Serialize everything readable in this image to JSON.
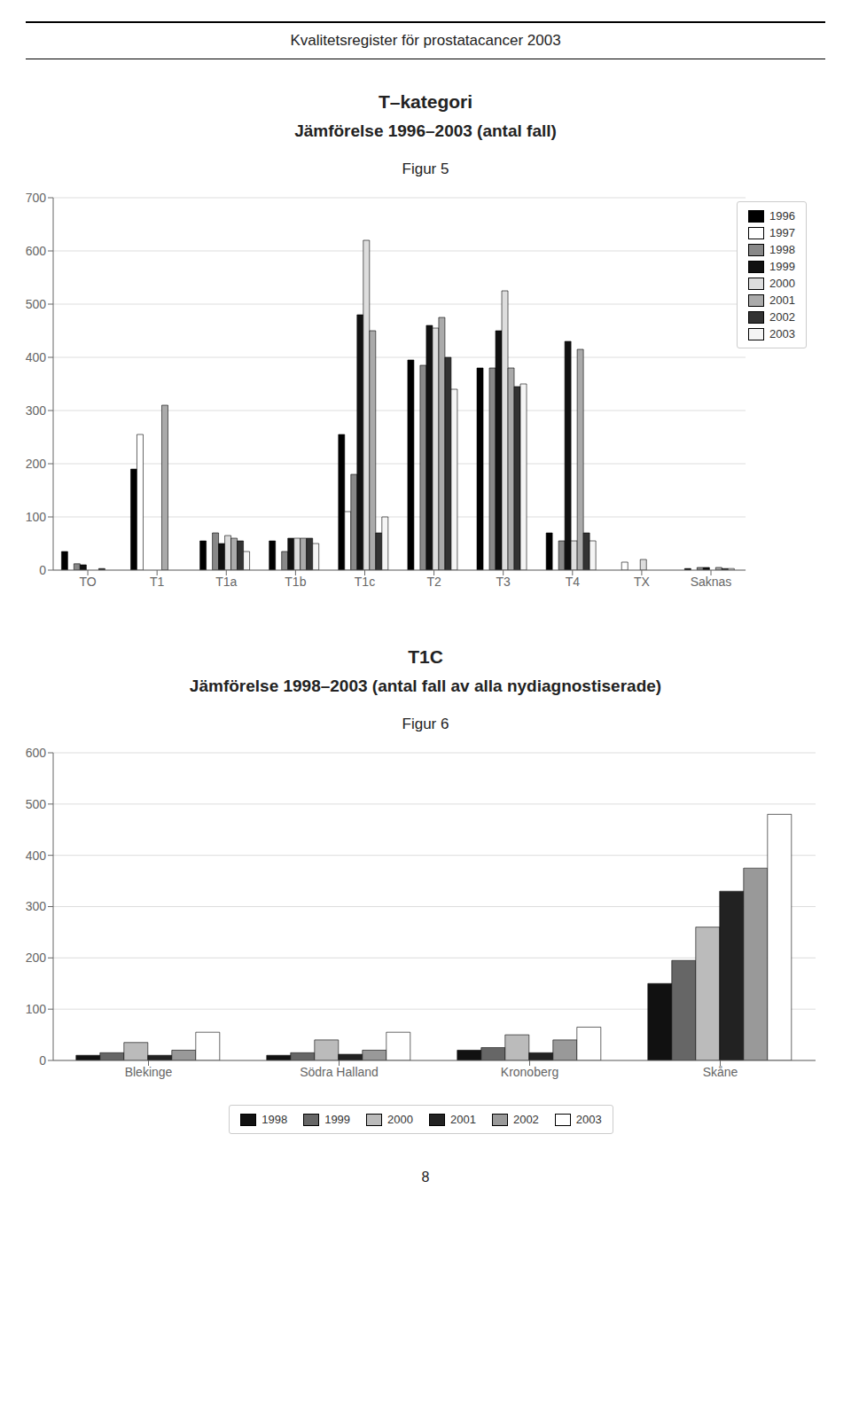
{
  "title": "Kvalitetsregister för prostatacancer 2003",
  "annotations": [
    "8"
  ],
  "chart_data": [
    {
      "type": "bar",
      "title": "T–kategori\nJämförelse 1996–2003 (antal fall)",
      "subtitle": "Figur 5",
      "categories": [
        "TO",
        "T1",
        "T1a",
        "T1b",
        "T1c",
        "T2",
        "T3",
        "T4",
        "TX",
        "Saknas"
      ],
      "series": [
        {
          "name": "1996",
          "color": "#000000",
          "values": [
            35,
            190,
            55,
            55,
            255,
            395,
            380,
            70,
            0,
            3
          ]
        },
        {
          "name": "1997",
          "color": "#ffffff",
          "values": [
            0,
            255,
            0,
            0,
            110,
            0,
            0,
            0,
            15,
            0
          ]
        },
        {
          "name": "1998",
          "color": "#888888",
          "values": [
            12,
            0,
            70,
            35,
            180,
            385,
            380,
            55,
            0,
            5
          ]
        },
        {
          "name": "1999",
          "color": "#111111",
          "values": [
            10,
            0,
            50,
            60,
            480,
            460,
            450,
            430,
            0,
            5
          ]
        },
        {
          "name": "2000",
          "color": "#dddddd",
          "values": [
            0,
            0,
            65,
            60,
            620,
            455,
            525,
            55,
            20,
            0
          ]
        },
        {
          "name": "2001",
          "color": "#aaaaaa",
          "values": [
            0,
            310,
            60,
            60,
            450,
            475,
            380,
            415,
            0,
            5
          ]
        },
        {
          "name": "2002",
          "color": "#333333",
          "values": [
            3,
            0,
            55,
            60,
            70,
            400,
            345,
            70,
            0,
            3
          ]
        },
        {
          "name": "2003",
          "color": "#f5f5f5",
          "values": [
            0,
            0,
            35,
            50,
            100,
            340,
            350,
            55,
            0,
            3
          ]
        }
      ],
      "ylim": [
        0,
        700
      ],
      "yticks": [
        0,
        100,
        200,
        300,
        400,
        500,
        600,
        700
      ],
      "grid": true,
      "legend": "upper right"
    },
    {
      "type": "bar",
      "title": "T1C\nJämförelse 1998–2003 (antal fall av alla nydiagnostiserade)",
      "subtitle": "Figur 6",
      "categories": [
        "Blekinge",
        "Södra Halland",
        "Kronoberg",
        "Skåne"
      ],
      "series": [
        {
          "name": "1998",
          "color": "#111111",
          "values": [
            10,
            10,
            20,
            150
          ]
        },
        {
          "name": "1999",
          "color": "#666666",
          "values": [
            15,
            15,
            25,
            195
          ]
        },
        {
          "name": "2000",
          "color": "#bbbbbb",
          "values": [
            35,
            40,
            50,
            260
          ]
        },
        {
          "name": "2001",
          "color": "#222222",
          "values": [
            10,
            12,
            15,
            330
          ]
        },
        {
          "name": "2002",
          "color": "#999999",
          "values": [
            20,
            20,
            40,
            375
          ]
        },
        {
          "name": "2003",
          "color": "#ffffff",
          "values": [
            55,
            55,
            65,
            480
          ]
        }
      ],
      "ylim": [
        0,
        600
      ],
      "yticks": [
        0,
        100,
        200,
        300,
        400,
        500,
        600
      ],
      "grid": true,
      "legend": "lower center"
    }
  ]
}
